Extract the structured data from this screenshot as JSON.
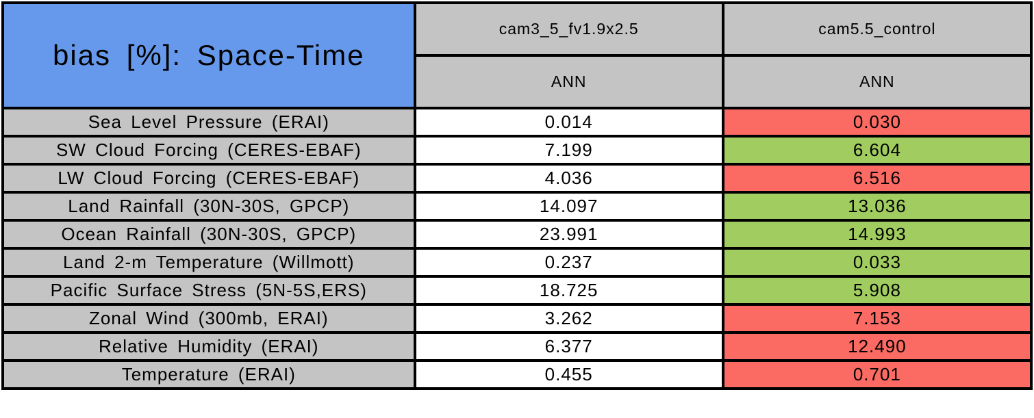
{
  "title": "bias [%]: Space-Time",
  "header": {
    "columns": [
      {
        "model": "cam3_5_fv1.9x2.5",
        "season": "ANN"
      },
      {
        "model": "cam5.5_control",
        "season": "ANN"
      }
    ]
  },
  "rows": [
    {
      "label": "Sea Level Pressure (ERAI)",
      "values": [
        {
          "text": "0.014",
          "status": "neutral"
        },
        {
          "text": "0.030",
          "status": "worse"
        }
      ]
    },
    {
      "label": "SW Cloud Forcing (CERES-EBAF)",
      "values": [
        {
          "text": "7.199",
          "status": "neutral"
        },
        {
          "text": "6.604",
          "status": "better"
        }
      ]
    },
    {
      "label": "LW Cloud Forcing (CERES-EBAF)",
      "values": [
        {
          "text": "4.036",
          "status": "neutral"
        },
        {
          "text": "6.516",
          "status": "worse"
        }
      ]
    },
    {
      "label": "Land Rainfall (30N-30S, GPCP)",
      "values": [
        {
          "text": "14.097",
          "status": "neutral"
        },
        {
          "text": "13.036",
          "status": "better"
        }
      ]
    },
    {
      "label": "Ocean Rainfall (30N-30S, GPCP)",
      "values": [
        {
          "text": "23.991",
          "status": "neutral"
        },
        {
          "text": "14.993",
          "status": "better"
        }
      ]
    },
    {
      "label": "Land 2-m Temperature (Willmott)",
      "values": [
        {
          "text": "0.237",
          "status": "neutral"
        },
        {
          "text": "0.033",
          "status": "better"
        }
      ]
    },
    {
      "label": "Pacific Surface Stress (5N-5S,ERS)",
      "values": [
        {
          "text": "18.725",
          "status": "neutral"
        },
        {
          "text": "5.908",
          "status": "better"
        }
      ]
    },
    {
      "label": "Zonal Wind (300mb, ERAI)",
      "values": [
        {
          "text": "3.262",
          "status": "neutral"
        },
        {
          "text": "7.153",
          "status": "worse"
        }
      ]
    },
    {
      "label": "Relative Humidity (ERAI)",
      "values": [
        {
          "text": "6.377",
          "status": "neutral"
        },
        {
          "text": "12.490",
          "status": "worse"
        }
      ]
    },
    {
      "label": "Temperature (ERAI)",
      "values": [
        {
          "text": "0.455",
          "status": "neutral"
        },
        {
          "text": "0.701",
          "status": "worse"
        }
      ]
    }
  ],
  "colors": {
    "title_bg": "#6699EC",
    "header_bg": "#C4C4C4",
    "label_bg": "#C4C4C4",
    "value_neutral_bg": "#FFFFFF",
    "value_better_bg": "#A1CC60",
    "value_worse_bg": "#FB6A63",
    "border": "#000000"
  },
  "chart_data": {
    "type": "table",
    "title": "bias [%]: Space-Time",
    "categories": [
      "Sea Level Pressure (ERAI)",
      "SW Cloud Forcing (CERES-EBAF)",
      "LW Cloud Forcing (CERES-EBAF)",
      "Land Rainfall (30N-30S, GPCP)",
      "Ocean Rainfall (30N-30S, GPCP)",
      "Land 2-m Temperature (Willmott)",
      "Pacific Surface Stress (5N-5S,ERS)",
      "Zonal Wind (300mb, ERAI)",
      "Relative Humidity (ERAI)",
      "Temperature (ERAI)"
    ],
    "series": [
      {
        "name": "cam3_5_fv1.9x2.5 (ANN)",
        "values": [
          0.014,
          7.199,
          4.036,
          14.097,
          23.991,
          0.237,
          18.725,
          3.262,
          6.377,
          0.455
        ]
      },
      {
        "name": "cam5.5_control (ANN)",
        "values": [
          0.03,
          6.604,
          6.516,
          13.036,
          14.993,
          0.033,
          5.908,
          7.153,
          12.49,
          0.701
        ]
      }
    ],
    "highlight_cam5_5_control": [
      "worse",
      "better",
      "worse",
      "better",
      "better",
      "better",
      "better",
      "worse",
      "worse",
      "worse"
    ],
    "legend_position": "none",
    "grid": "all-borders"
  }
}
